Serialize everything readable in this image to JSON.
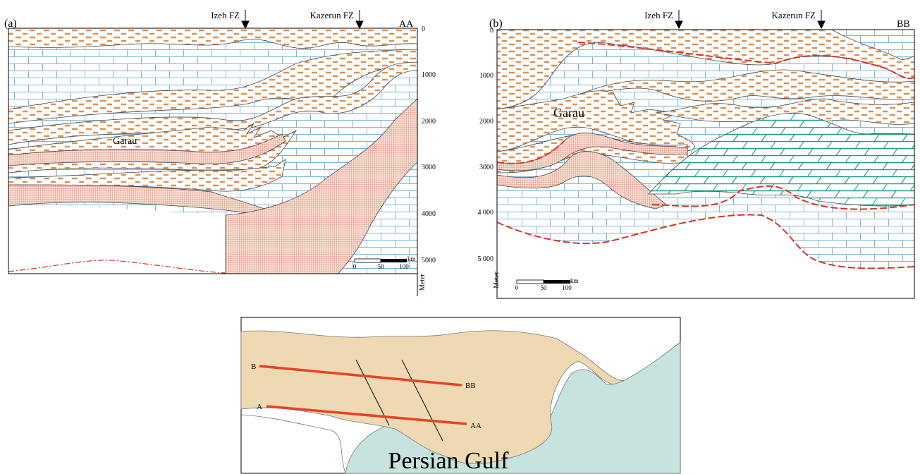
{
  "panel_a": {
    "label": "(a)",
    "faults": [
      "Izeh FZ",
      "Kazerun FZ"
    ],
    "section": "AA",
    "depth_ticks": [
      0,
      1000,
      2000,
      3000,
      4000,
      5000
    ],
    "depth_unit": "Meter",
    "formation": "Garau",
    "scale": {
      "unit": "km",
      "ticks": [
        0,
        50,
        100
      ]
    }
  },
  "panel_b": {
    "label": "(b)",
    "faults": [
      "Izeh FZ",
      "Kazerun FZ"
    ],
    "section": "BB",
    "depth_ticks": [
      "0",
      "1000",
      "2000",
      "3000",
      "4 000",
      "5 000"
    ],
    "depth_unit": "Meter",
    "formation": "Garau",
    "scale": {
      "unit": "km",
      "ticks": [
        0,
        50,
        100
      ]
    }
  },
  "map": {
    "lines": [
      {
        "start": "B",
        "end": "BB"
      },
      {
        "start": "A",
        "end": "AA"
      }
    ],
    "sea": "Persian Gulf"
  }
}
